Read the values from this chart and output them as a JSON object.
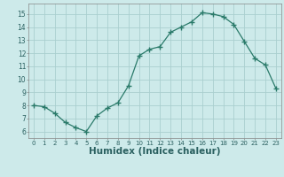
{
  "x": [
    0,
    1,
    2,
    3,
    4,
    5,
    6,
    7,
    8,
    9,
    10,
    11,
    12,
    13,
    14,
    15,
    16,
    17,
    18,
    19,
    20,
    21,
    22,
    23
  ],
  "y": [
    8.0,
    7.9,
    7.4,
    6.7,
    6.3,
    6.0,
    7.2,
    7.8,
    8.2,
    9.5,
    11.8,
    12.3,
    12.5,
    13.6,
    14.0,
    14.4,
    15.1,
    15.0,
    14.8,
    14.2,
    12.9,
    11.6,
    11.1,
    9.3
  ],
  "line_color": "#2a7a6a",
  "marker": "+",
  "marker_size": 4,
  "bg_color": "#cdeaea",
  "grid_color": "#aacfcf",
  "xlabel": "Humidex (Indice chaleur)",
  "yticks": [
    6,
    7,
    8,
    9,
    10,
    11,
    12,
    13,
    14,
    15
  ],
  "ylim": [
    5.5,
    15.8
  ],
  "xlim": [
    -0.5,
    23.5
  ],
  "xticks": [
    0,
    1,
    2,
    3,
    4,
    5,
    6,
    7,
    8,
    9,
    10,
    11,
    12,
    13,
    14,
    15,
    16,
    17,
    18,
    19,
    20,
    21,
    22,
    23
  ]
}
